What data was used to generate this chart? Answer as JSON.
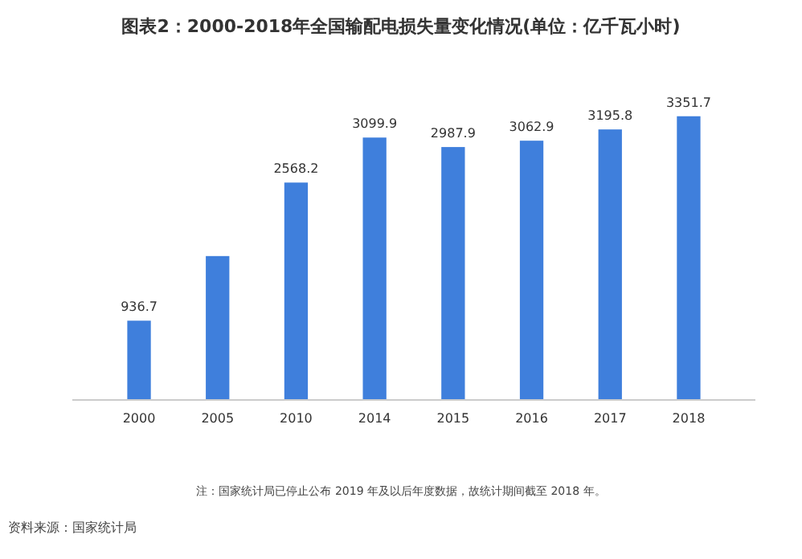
{
  "chart_data": {
    "type": "bar",
    "title": "图表2：2000-2018年全国输配电损失量变化情况(单位：亿千瓦小时)",
    "categories": [
      "2000",
      "2005",
      "2010",
      "2014",
      "2015",
      "2016",
      "2017",
      "2018"
    ],
    "values": [
      936.7,
      1700,
      2568.2,
      3099.9,
      2987.9,
      3062.9,
      3195.8,
      3351.7
    ],
    "value_labels": [
      "936.7",
      null,
      "2568.2",
      "3099.9",
      "2987.9",
      "3062.9",
      "3195.8",
      "3351.7"
    ],
    "color": "#3f7fdc",
    "annotations": [
      "注：国家统计局已停止公布 2019 年及以后年度数据，故统计期间截至 2018 年。",
      "资料来源：国家统计局"
    ]
  }
}
